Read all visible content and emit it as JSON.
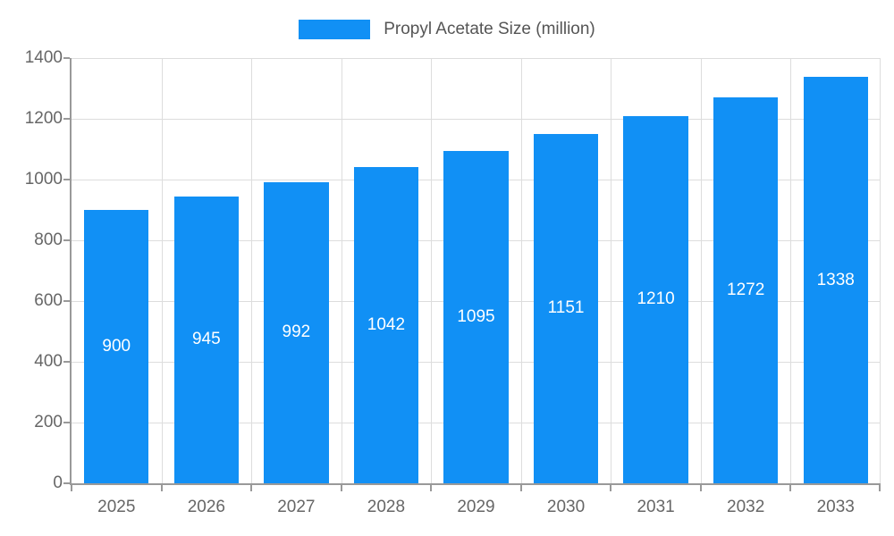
{
  "chart_data": {
    "type": "bar",
    "title": "Propyl Acetate Size (million)",
    "categories": [
      "2025",
      "2026",
      "2027",
      "2028",
      "2029",
      "2030",
      "2031",
      "2032",
      "2033"
    ],
    "values": [
      900,
      945,
      992,
      1042,
      1095,
      1151,
      1210,
      1272,
      1338
    ],
    "xlabel": "",
    "ylabel": "",
    "ylim": [
      0,
      1400
    ],
    "ytick_step": 200,
    "grid": true,
    "legend_position": "top",
    "colors": {
      "bar": "#1190F5",
      "gridline": "#dddddd",
      "axis": "#999999",
      "tick_text": "#666666",
      "legend_text": "#555555",
      "value_label_text": "#ffffff"
    }
  }
}
